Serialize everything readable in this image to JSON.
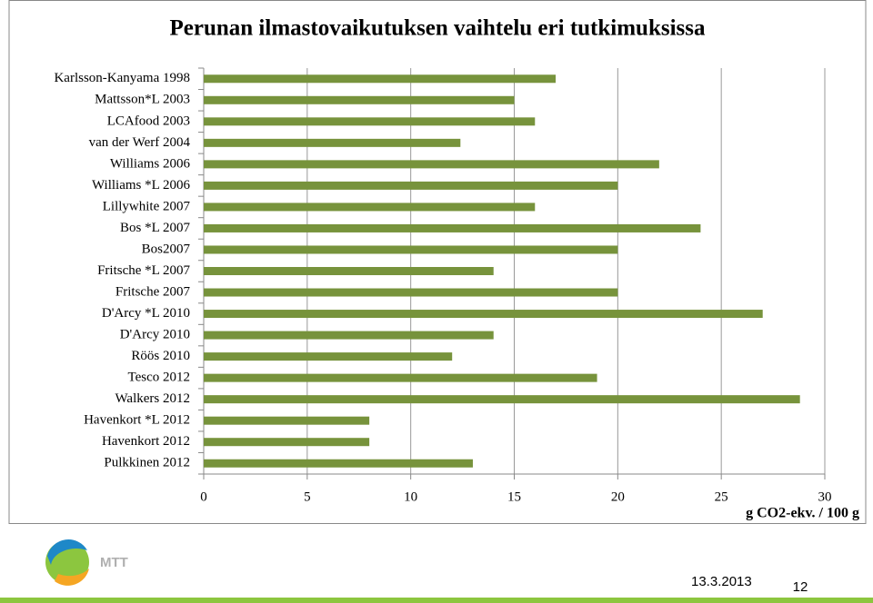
{
  "chart_data": {
    "type": "bar",
    "orientation": "horizontal",
    "title": "Perunan ilmastovaikutuksen vaihtelu eri tutkimuksissa",
    "x_label": "g CO2-ekv. / 100 g",
    "categories": [
      "Karlsson-Kanyama 1998",
      "Mattsson*L 2003",
      "LCAfood 2003",
      "van der Werf 2004",
      "Williams 2006",
      "Williams *L 2006",
      "Lillywhite 2007",
      "Bos *L 2007",
      "Bos2007",
      "Fritsche *L 2007",
      "Fritsche 2007",
      "D'Arcy *L 2010",
      "D'Arcy 2010",
      "Röös 2010",
      "Tesco 2012",
      "Walkers 2012",
      "Havenkort *L 2012",
      "Havenkort 2012",
      "Pulkkinen 2012"
    ],
    "values": [
      17,
      15,
      16,
      12.4,
      22,
      20,
      16,
      24,
      20,
      14,
      20,
      27,
      14,
      12,
      19,
      28.8,
      8,
      8,
      13
    ],
    "color": "#77933c",
    "xlim": [
      0,
      30
    ],
    "xticks": [
      0,
      5,
      10,
      15,
      20,
      25,
      30
    ],
    "grid": true
  },
  "footer": {
    "logo": "MTT",
    "date": "13.3.2013",
    "page": "12"
  }
}
